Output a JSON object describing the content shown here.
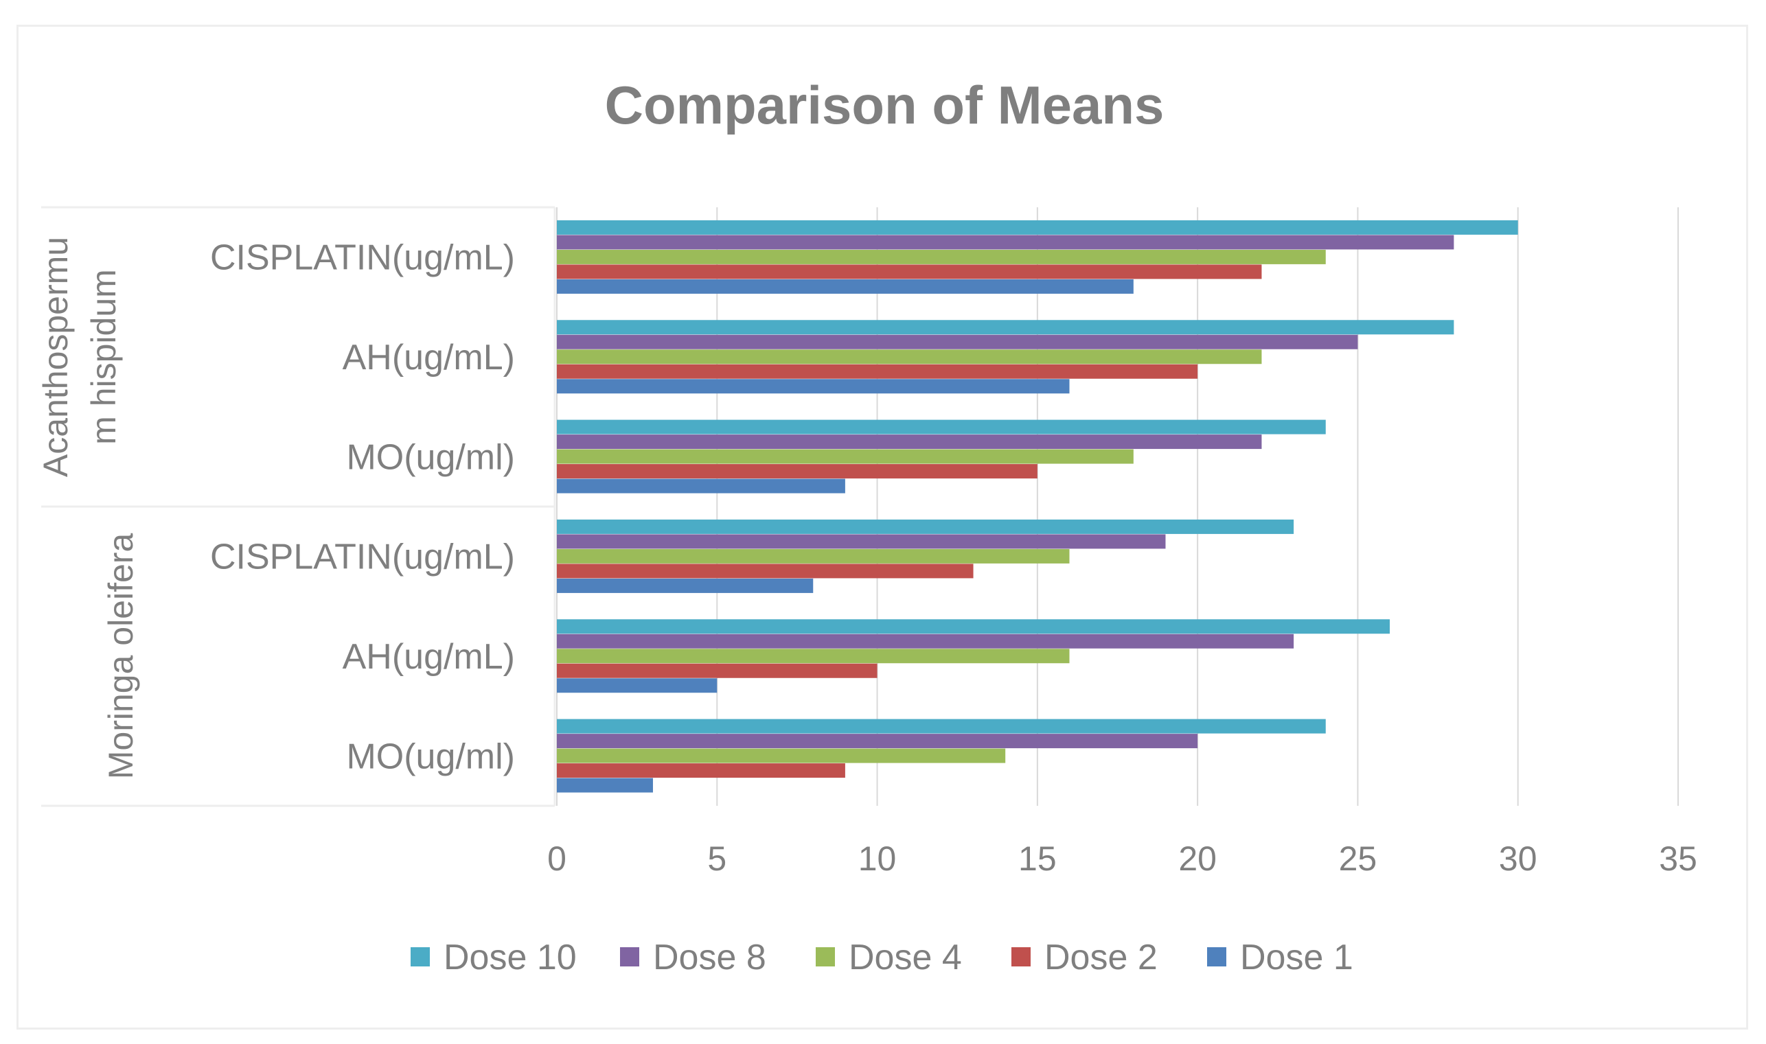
{
  "chart_data": {
    "type": "bar",
    "orientation": "horizontal",
    "title": "Comparison of Means",
    "xlabel": "",
    "ylabel": "",
    "xlim": [
      0,
      35
    ],
    "xticks": [
      0,
      5,
      10,
      15,
      20,
      25,
      30,
      35
    ],
    "grid": true,
    "legend_position": "bottom",
    "groups": [
      {
        "label_lines": [
          "Acanthospermu",
          "m hispidum"
        ],
        "categories": [
          "CISPLATIN(ug/mL)",
          "AH(ug/mL)",
          "MO(ug/ml)"
        ]
      },
      {
        "label_lines": [
          "Moringa oleifera"
        ],
        "categories": [
          "CISPLATIN(ug/mL)",
          "AH(ug/mL)",
          "MO(ug/ml)"
        ]
      }
    ],
    "series": [
      {
        "name": "Dose 10",
        "color": "#4BACC6",
        "values": [
          30,
          28,
          24,
          23,
          26,
          24
        ]
      },
      {
        "name": "Dose 8",
        "color": "#8064A2",
        "values": [
          28,
          25,
          22,
          19,
          23,
          20
        ]
      },
      {
        "name": "Dose 4",
        "color": "#9BBB59",
        "values": [
          24,
          22,
          18,
          16,
          16,
          14
        ]
      },
      {
        "name": "Dose 2",
        "color": "#C0504D",
        "values": [
          22,
          20,
          15,
          13,
          10,
          9
        ]
      },
      {
        "name": "Dose 1",
        "color": "#4F81BD",
        "values": [
          18,
          16,
          9,
          8,
          5,
          3
        ]
      }
    ]
  }
}
